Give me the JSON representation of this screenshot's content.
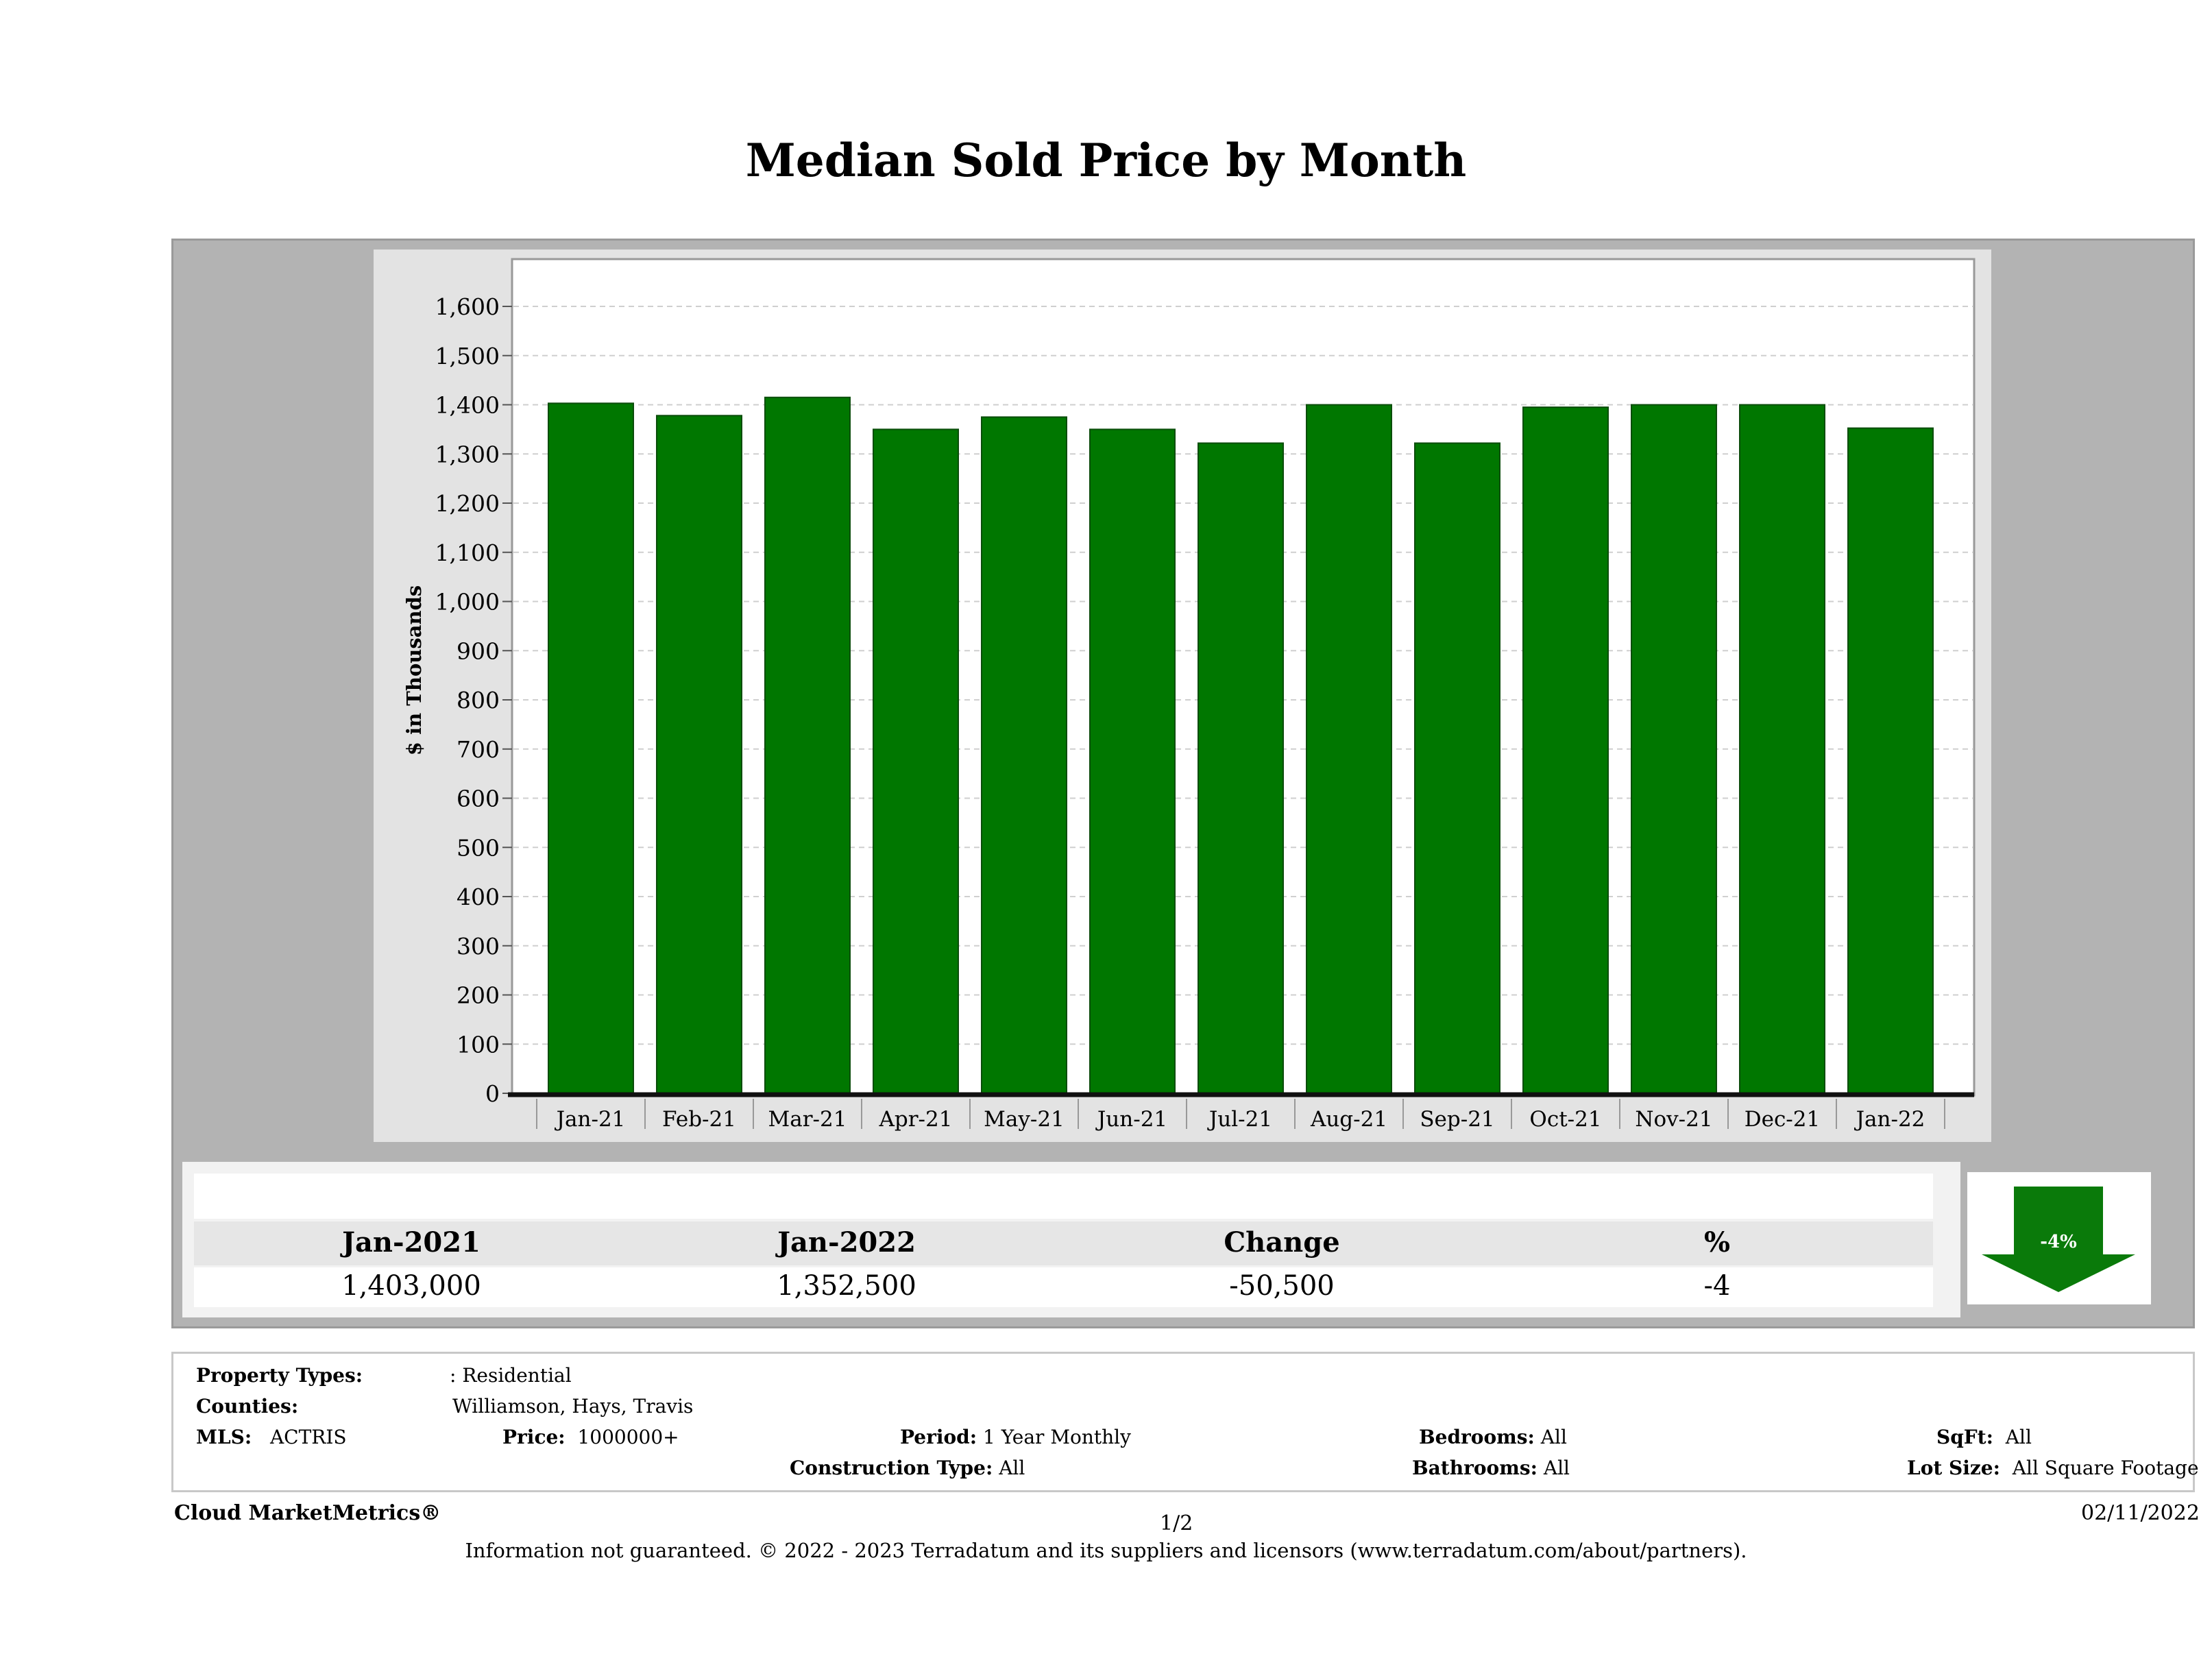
{
  "title": "Median Sold Price by Month",
  "chart_data": {
    "type": "bar",
    "ylabel": "$ in Thousands",
    "ylim": [
      0,
      1700
    ],
    "yticks": [
      "0",
      "100",
      "200",
      "300",
      "400",
      "500",
      "600",
      "700",
      "800",
      "900",
      "1,000",
      "1,100",
      "1,200",
      "1,300",
      "1,400",
      "1,500",
      "1,600"
    ],
    "categories": [
      "Jan-21",
      "Feb-21",
      "Mar-21",
      "Apr-21",
      "May-21",
      "Jun-21",
      "Jul-21",
      "Aug-21",
      "Sep-21",
      "Oct-21",
      "Nov-21",
      "Dec-21",
      "Jan-22"
    ],
    "values": [
      1403,
      1378,
      1415,
      1350,
      1375,
      1350,
      1322,
      1400,
      1322,
      1395,
      1400,
      1400,
      1352.5
    ],
    "bar_color": "#007700",
    "grid": true
  },
  "stats": {
    "headers": [
      "Jan-2021",
      "Jan-2022",
      "Change",
      "%"
    ],
    "values": [
      "1,403,000",
      "1,352,500",
      "-50,500",
      "-4"
    ],
    "arrow_label": "-4%",
    "arrow_color": "#0a7a0a"
  },
  "info": {
    "property_types_label": "Property Types:",
    "property_types_value": ": Residential",
    "counties_label": "Counties:",
    "counties_value": "Williamson, Hays, Travis",
    "mls_label": "MLS:",
    "mls_value": "ACTRIS",
    "price_label": "Price:",
    "price_value": "1000000+",
    "period_label": "Period:",
    "period_value": "1 Year Monthly",
    "construction_label": "Construction Type:",
    "construction_value": "All",
    "bedrooms_label": "Bedrooms:",
    "bedrooms_value": "All",
    "bathrooms_label": "Bathrooms:",
    "bathrooms_value": "All",
    "sqft_label": "SqFt:",
    "sqft_value": "All",
    "lotsize_label": "Lot Size:",
    "lotsize_value": "All Square Footage"
  },
  "footer": {
    "brand": "Cloud MarketMetrics®",
    "page": "1/2",
    "date": "02/11/2022",
    "disclaimer": "Information not guaranteed. © 2022 - 2023 Terradatum and its suppliers and licensors (www.terradatum.com/about/partners)."
  }
}
